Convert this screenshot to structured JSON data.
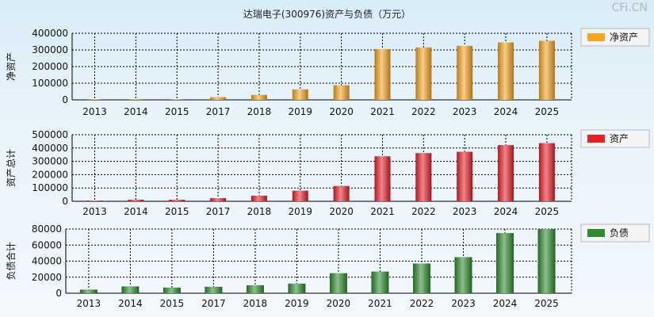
{
  "title": "达瑞电子(300976)资产与负债（万元）",
  "brand": "CFi.CN",
  "categories": [
    "2013",
    "2014",
    "2015",
    "2017",
    "2018",
    "2019",
    "2020",
    "2021",
    "2022",
    "2023",
    "2024",
    "2025"
  ],
  "chart_data": [
    {
      "type": "bar",
      "ylabel": "净资产",
      "legend": "净资产",
      "color": "#f5a623",
      "ylim": [
        0,
        400000
      ],
      "yticks": [
        0,
        100000,
        200000,
        300000,
        400000
      ],
      "categories": [
        "2013",
        "2014",
        "2015",
        "2017",
        "2018",
        "2019",
        "2020",
        "2021",
        "2022",
        "2023",
        "2024",
        "2025"
      ],
      "values": [
        2000,
        3000,
        4000,
        16000,
        30000,
        63000,
        88000,
        305000,
        315000,
        325000,
        345000,
        355000
      ]
    },
    {
      "type": "bar",
      "ylabel": "资产总计",
      "legend": "资产",
      "color": "#e8202a",
      "ylim": [
        0,
        500000
      ],
      "yticks": [
        0,
        100000,
        200000,
        300000,
        400000,
        500000
      ],
      "categories": [
        "2013",
        "2014",
        "2015",
        "2017",
        "2018",
        "2019",
        "2020",
        "2021",
        "2022",
        "2023",
        "2024",
        "2025"
      ],
      "values": [
        6000,
        12000,
        12000,
        24000,
        42000,
        80000,
        115000,
        338000,
        362000,
        372000,
        422000,
        437000
      ]
    },
    {
      "type": "bar",
      "ylabel": "负债合计",
      "legend": "负债",
      "color": "#2e8b2e",
      "ylim": [
        0,
        80000
      ],
      "yticks": [
        0,
        20000,
        40000,
        60000,
        80000
      ],
      "categories": [
        "2013",
        "2014",
        "2015",
        "2017",
        "2018",
        "2019",
        "2020",
        "2021",
        "2022",
        "2023",
        "2024",
        "2025"
      ],
      "values": [
        4500,
        8500,
        7000,
        8000,
        10000,
        12000,
        25000,
        27000,
        37000,
        45000,
        75000,
        80000
      ]
    }
  ]
}
